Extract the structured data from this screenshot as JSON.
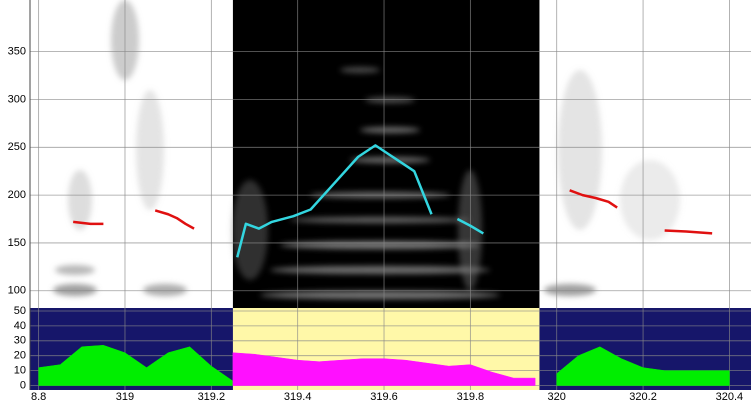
{
  "chart_data": [
    {
      "type": "line",
      "xlim": [
        318.78,
        320.45
      ],
      "ylim": [
        82,
        404
      ],
      "yticks": [
        100,
        150,
        200,
        250,
        300,
        350
      ],
      "selection": [
        319.25,
        319.96
      ],
      "selection_color": "#000000",
      "background": "#ffffff",
      "grid": true,
      "x": [
        318.88,
        318.9,
        318.92,
        318.95,
        319.0,
        319.07,
        319.1,
        319.12,
        319.14,
        319.16,
        319.26,
        319.28,
        319.31,
        319.34,
        319.39,
        319.43,
        319.45,
        319.49,
        319.54,
        319.58,
        319.62,
        319.67,
        319.71,
        319.74,
        319.77,
        319.8,
        319.83,
        320.03,
        320.06,
        320.09,
        320.12,
        320.14,
        320.2,
        320.25,
        320.3,
        320.36
      ],
      "series": [
        {
          "color": "#e01010",
          "values": [
            172,
            171,
            170,
            170,
            null,
            184,
            180,
            176,
            170,
            165,
            null,
            null,
            null,
            null,
            null,
            null,
            null,
            null,
            null,
            null,
            null,
            null,
            null,
            null,
            null,
            null,
            null,
            205,
            200,
            197,
            193,
            187,
            null,
            163,
            162,
            160
          ]
        },
        {
          "color": "#33d6e0",
          "values": [
            null,
            null,
            null,
            null,
            null,
            null,
            null,
            null,
            null,
            null,
            135,
            170,
            165,
            172,
            178,
            185,
            195,
            215,
            240,
            252,
            240,
            225,
            180,
            null,
            175,
            168,
            160,
            null,
            null,
            null,
            null,
            null,
            null,
            null,
            null,
            null
          ]
        }
      ]
    },
    {
      "type": "area",
      "xlim": [
        318.78,
        320.45
      ],
      "ylim": [
        -3,
        52
      ],
      "yticks": [
        0,
        10,
        20,
        30,
        40,
        50
      ],
      "xticks": [
        {
          "value": 318.8,
          "label": "8.8"
        },
        319,
        319.2,
        319.4,
        319.6,
        319.8,
        320,
        320.2,
        320.4
      ],
      "background": "#16166a",
      "selection_color": "#fff8a8",
      "grid": true,
      "x": [
        318.8,
        318.85,
        318.9,
        318.95,
        319.0,
        319.05,
        319.1,
        319.15,
        319.2,
        319.25,
        319.3,
        319.35,
        319.4,
        319.45,
        319.5,
        319.55,
        319.6,
        319.65,
        319.7,
        319.75,
        319.8,
        319.85,
        319.9,
        319.95,
        320.0,
        320.05,
        320.1,
        320.15,
        320.2,
        320.25,
        320.3,
        320.35,
        320.4
      ],
      "series": [
        {
          "color": "#00ee00",
          "values": [
            12,
            14,
            26,
            27,
            22,
            12,
            22,
            26,
            13,
            3,
            null,
            null,
            null,
            null,
            null,
            null,
            null,
            null,
            null,
            null,
            null,
            null,
            null,
            null,
            8,
            20,
            26,
            18,
            12,
            10,
            10,
            10,
            10
          ]
        },
        {
          "color": "#ff10ff",
          "values": [
            null,
            null,
            null,
            null,
            null,
            null,
            null,
            null,
            null,
            22,
            21,
            19,
            17,
            16,
            17,
            18,
            18,
            17,
            15,
            13,
            14,
            9,
            5,
            5,
            null,
            null,
            null,
            null,
            null,
            null,
            null,
            null,
            null
          ]
        }
      ]
    }
  ]
}
